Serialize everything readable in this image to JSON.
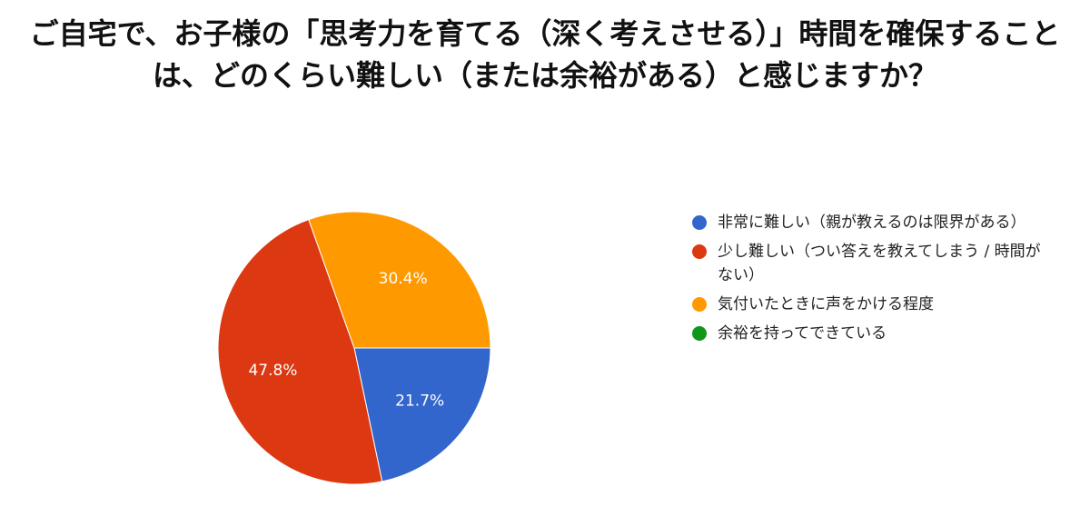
{
  "chart_data": {
    "type": "pie",
    "title": "ご自宅で、お子様の「思考力を育てる（深く考えさせる）」時間を確保することは、どのくらい難しい（または余裕がある）と感じますか？",
    "categories": [
      "非常に難しい（親が教えるのは限界がある）",
      "少し難しい（つい答えを教えてしまう / 時間がない）",
      "気付いたときに声をかける程度",
      "余裕を持ってできている"
    ],
    "values": [
      21.7,
      47.8,
      30.4,
      0
    ],
    "value_labels": [
      "21.7%",
      "47.8%",
      "30.4%",
      null
    ],
    "colors": [
      "#3366cc",
      "#dc3912",
      "#ff9900",
      "#109618"
    ],
    "legend": "right"
  }
}
